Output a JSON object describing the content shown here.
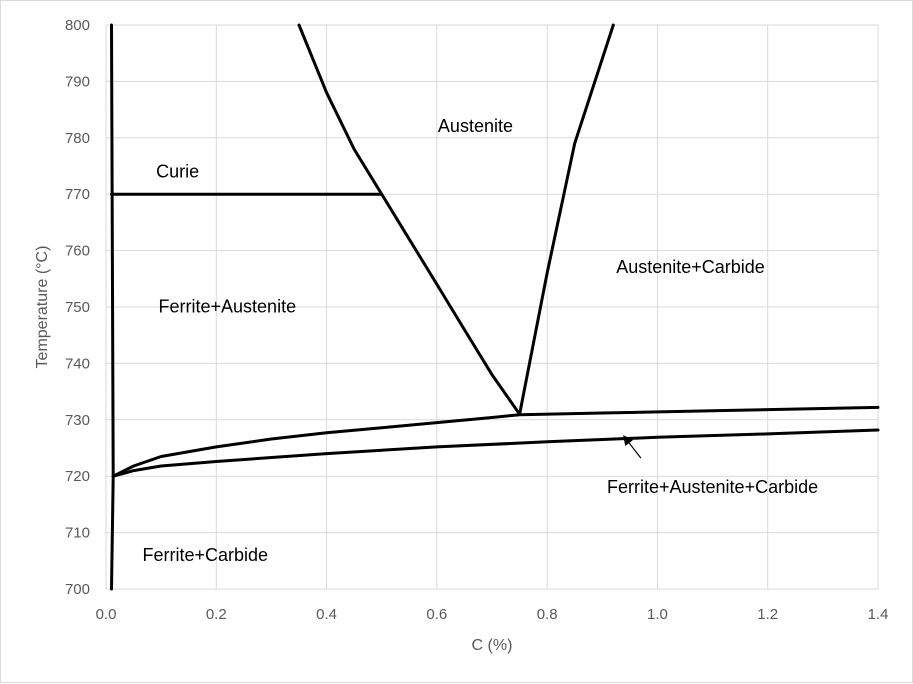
{
  "chart_data": {
    "type": "line",
    "title": "",
    "xlabel": "C (%)",
    "ylabel": "Temperature (°C)",
    "xlim": [
      0.0,
      1.4
    ],
    "ylim": [
      700,
      800
    ],
    "x_ticks": [
      "0.0",
      "0.2",
      "0.4",
      "0.6",
      "0.8",
      "1.0",
      "1.2",
      "1.4"
    ],
    "y_ticks": [
      "700",
      "710",
      "720",
      "730",
      "740",
      "750",
      "760",
      "770",
      "780",
      "790",
      "800"
    ],
    "grid": true,
    "legend": "none",
    "colors": {
      "phase_line": "#000000",
      "curie_line": "#2f5a8a",
      "grid": "#d9d9d9",
      "axis_text": "#595959"
    },
    "series": [
      {
        "points": [
          [
            0.01,
            700
          ],
          [
            0.013,
            720
          ],
          [
            0.01,
            800
          ]
        ]
      },
      {
        "points": [
          [
            0.35,
            800
          ],
          [
            0.4,
            788
          ],
          [
            0.45,
            778
          ],
          [
            0.5,
            770
          ],
          [
            0.55,
            762
          ],
          [
            0.6,
            754
          ],
          [
            0.65,
            746
          ],
          [
            0.7,
            738
          ],
          [
            0.75,
            731
          ]
        ]
      },
      {
        "points": [
          [
            0.75,
            731
          ],
          [
            0.8,
            756
          ],
          [
            0.85,
            779
          ],
          [
            0.92,
            800
          ]
        ]
      },
      {
        "points": [
          [
            0.013,
            720
          ],
          [
            0.05,
            721.8
          ],
          [
            0.1,
            723.5
          ],
          [
            0.2,
            725.2
          ],
          [
            0.3,
            726.6
          ],
          [
            0.4,
            727.7
          ],
          [
            0.5,
            728.6
          ],
          [
            0.6,
            729.5
          ],
          [
            0.7,
            730.4
          ],
          [
            0.75,
            730.9
          ],
          [
            0.9,
            731.2
          ],
          [
            1.1,
            731.6
          ],
          [
            1.4,
            732.2
          ]
        ]
      },
      {
        "points": [
          [
            0.013,
            720
          ],
          [
            0.05,
            721
          ],
          [
            0.1,
            721.8
          ],
          [
            0.2,
            722.6
          ],
          [
            0.4,
            724
          ],
          [
            0.6,
            725.2
          ],
          [
            0.8,
            726.1
          ],
          [
            1.0,
            726.9
          ],
          [
            1.2,
            727.5
          ],
          [
            1.4,
            728.2
          ]
        ]
      },
      {
        "points": [
          [
            0.01,
            770
          ],
          [
            0.5,
            770
          ]
        ]
      }
    ],
    "annotations": [
      {
        "text": "Austenite",
        "x": 0.67,
        "y": 781
      },
      {
        "text": "Curie",
        "x": 0.13,
        "y": 773
      },
      {
        "text": "Austenite+Carbide",
        "x": 1.06,
        "y": 756
      },
      {
        "text": "Ferrite+Austenite",
        "x": 0.22,
        "y": 749
      },
      {
        "text": "Ferrite+Austenite+Carbide",
        "x": 1.1,
        "y": 717
      },
      {
        "text": "Ferrite+Carbide",
        "x": 0.18,
        "y": 705
      }
    ],
    "arrow": {
      "from": [
        0.97,
        723.2
      ],
      "to": [
        0.94,
        727
      ]
    }
  }
}
